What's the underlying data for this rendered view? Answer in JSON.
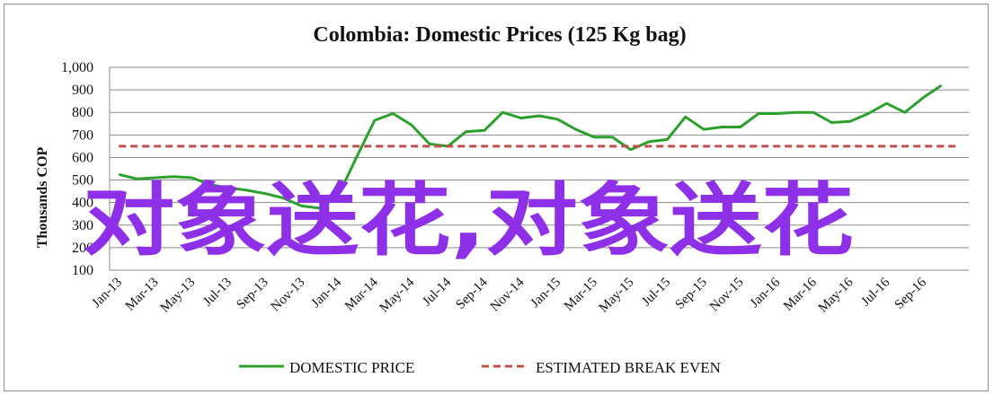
{
  "chart_data": {
    "type": "line",
    "title": "Colombia:  Domestic Prices (125 Kg bag)",
    "ylabel": "Thousands COP",
    "xlabel": "",
    "ylim": [
      100,
      1000
    ],
    "yticks": [
      "100",
      "200",
      "300",
      "400",
      "500",
      "600",
      "700",
      "800",
      "900",
      "1,000"
    ],
    "ytick_values": [
      100,
      200,
      300,
      400,
      500,
      600,
      700,
      800,
      900,
      1000
    ],
    "grid": "horizontal",
    "legend_position": "bottom",
    "x_labels": [
      "Jan-13",
      "Mar-13",
      "May-13",
      "Jul-13",
      "Sep-13",
      "Nov-13",
      "Jan-14",
      "Mar-14",
      "May-14",
      "Jul-14",
      "Sep-14",
      "Nov-14",
      "Jan-15",
      "Mar-15",
      "May-15",
      "Jul-15",
      "Sep-15",
      "Nov-15",
      "Jan-16",
      "Mar-16",
      "May-16",
      "Jul-16",
      "Sep-16"
    ],
    "months": [
      "Jan-13",
      "Feb-13",
      "Mar-13",
      "Apr-13",
      "May-13",
      "Jun-13",
      "Jul-13",
      "Aug-13",
      "Sep-13",
      "Oct-13",
      "Nov-13",
      "Dec-13",
      "Jan-14",
      "Feb-14",
      "Mar-14",
      "Apr-14",
      "May-14",
      "Jun-14",
      "Jul-14",
      "Aug-14",
      "Sep-14",
      "Oct-14",
      "Nov-14",
      "Dec-14",
      "Jan-15",
      "Feb-15",
      "Mar-15",
      "Apr-15",
      "May-15",
      "Jun-15",
      "Jul-15",
      "Aug-15",
      "Sep-15",
      "Oct-15",
      "Nov-15",
      "Dec-15",
      "Jan-16",
      "Feb-16",
      "Mar-16",
      "Apr-16",
      "May-16",
      "Jun-16",
      "Jul-16",
      "Aug-16",
      "Sep-16",
      "Oct-16",
      "Nov-16"
    ],
    "series": [
      {
        "name": "DOMESTIC PRICE",
        "color": "#2ca02c",
        "style": "solid",
        "values": [
          525,
          505,
          510,
          515,
          510,
          480,
          465,
          455,
          440,
          420,
          385,
          375,
          430,
          600,
          765,
          795,
          745,
          660,
          650,
          715,
          720,
          800,
          775,
          785,
          770,
          725,
          690,
          690,
          635,
          670,
          680,
          780,
          725,
          735,
          735,
          795,
          795,
          800,
          800,
          755,
          760,
          795,
          840,
          800,
          865,
          920,
          null
        ]
      },
      {
        "name": "ESTIMATED BREAK EVEN",
        "color": "#c0504d",
        "style": "dashed",
        "values": [
          650,
          650,
          650,
          650,
          650,
          650,
          650,
          650,
          650,
          650,
          650,
          650,
          650,
          650,
          650,
          650,
          650,
          650,
          650,
          650,
          650,
          650,
          650,
          650,
          650,
          650,
          650,
          650,
          650,
          650,
          650,
          650,
          650,
          650,
          650,
          650,
          650,
          650,
          650,
          650,
          650,
          650,
          650,
          650,
          650,
          650,
          650
        ]
      }
    ]
  },
  "watermark": "对象送花,对象送花"
}
